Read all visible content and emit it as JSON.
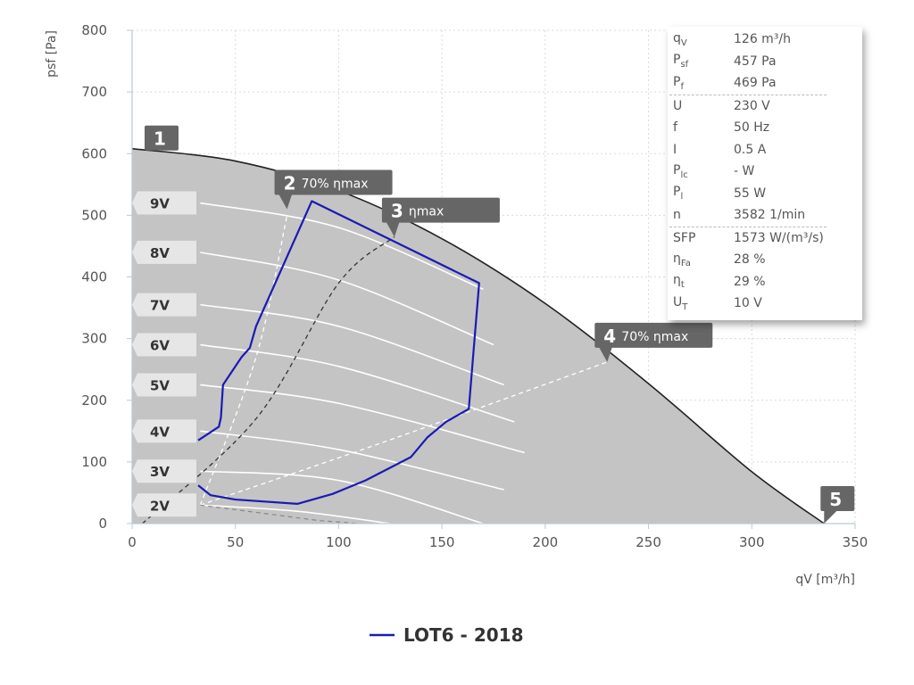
{
  "chart_data": {
    "type": "line",
    "xlabel": "qV [m³/h]",
    "ylabel": "psf [Pa]",
    "xlim": [
      0,
      350
    ],
    "ylim": [
      0,
      800
    ],
    "x_ticks": [
      0,
      50,
      100,
      150,
      200,
      250,
      300,
      350
    ],
    "y_ticks": [
      0,
      100,
      200,
      300,
      400,
      500,
      600,
      700,
      800
    ],
    "grid": true,
    "legend_position": "bottom-center",
    "legend": [
      {
        "name": "LOT6 - 2018",
        "color": "#1a1ab4"
      }
    ],
    "max_curve": [
      [
        0,
        608
      ],
      [
        50,
        588
      ],
      [
        100,
        540
      ],
      [
        150,
        462
      ],
      [
        200,
        357
      ],
      [
        250,
        227
      ],
      [
        300,
        84
      ],
      [
        335,
        0
      ]
    ],
    "lot6_polygon": [
      [
        32,
        62
      ],
      [
        38,
        46
      ],
      [
        50,
        39
      ],
      [
        80,
        32
      ],
      [
        97,
        48
      ],
      [
        113,
        70
      ],
      [
        135,
        108
      ],
      [
        143,
        140
      ],
      [
        152,
        165
      ],
      [
        163,
        186
      ],
      [
        168,
        390
      ],
      [
        87,
        523
      ],
      [
        60,
        320
      ],
      [
        57,
        285
      ],
      [
        53,
        270
      ],
      [
        44,
        225
      ],
      [
        43,
        172
      ],
      [
        42,
        157
      ],
      [
        32,
        135
      ]
    ],
    "eta_lines": [
      {
        "label": "2",
        "points": [
          [
            33,
            30
          ],
          [
            60,
            270
          ],
          [
            75,
            500
          ]
        ]
      },
      {
        "label": "3",
        "points": [
          [
            5,
            0
          ],
          [
            60,
            170
          ],
          [
            100,
            390
          ],
          [
            127,
            465
          ]
        ]
      },
      {
        "label": "4",
        "points": [
          [
            33,
            30
          ],
          [
            120,
            130
          ],
          [
            230,
            262
          ]
        ]
      }
    ],
    "voltage_curves": [
      {
        "label": "9V",
        "points": [
          [
            33,
            520
          ],
          [
            100,
            480
          ],
          [
            170,
            380
          ]
        ]
      },
      {
        "label": "8V",
        "points": [
          [
            33,
            440
          ],
          [
            100,
            395
          ],
          [
            175,
            290
          ]
        ]
      },
      {
        "label": "7V",
        "points": [
          [
            33,
            355
          ],
          [
            100,
            320
          ],
          [
            180,
            225
          ]
        ]
      },
      {
        "label": "6V",
        "points": [
          [
            33,
            290
          ],
          [
            100,
            255
          ],
          [
            185,
            165
          ]
        ]
      },
      {
        "label": "5V",
        "points": [
          [
            33,
            225
          ],
          [
            100,
            195
          ],
          [
            190,
            115
          ]
        ]
      },
      {
        "label": "4V",
        "points": [
          [
            33,
            150
          ],
          [
            100,
            120
          ],
          [
            180,
            55
          ]
        ]
      },
      {
        "label": "3V",
        "points": [
          [
            33,
            85
          ],
          [
            100,
            70
          ],
          [
            170,
            0
          ]
        ]
      },
      {
        "label": "2V",
        "points": [
          [
            33,
            30
          ],
          [
            80,
            20
          ],
          [
            125,
            0
          ]
        ]
      }
    ],
    "markers": [
      {
        "num": "1",
        "sub": "",
        "x": 0,
        "y": 608
      },
      {
        "num": "2",
        "sub": "70% ηmax",
        "x": 75,
        "y": 510
      },
      {
        "num": "3",
        "sub": "ηmax",
        "x": 127,
        "y": 465
      },
      {
        "num": "4",
        "sub": "70% ηmax",
        "x": 230,
        "y": 262
      },
      {
        "num": "5",
        "sub": "",
        "x": 335,
        "y": 0
      }
    ]
  },
  "info_panel": {
    "group1": [
      {
        "sym": "qV",
        "val": "126 m³/h"
      },
      {
        "sym": "Psf",
        "val": "457 Pa"
      },
      {
        "sym": "Pf",
        "val": "469 Pa"
      }
    ],
    "group2": [
      {
        "sym": "U",
        "val": "230 V"
      },
      {
        "sym": "f",
        "val": "50 Hz"
      },
      {
        "sym": "I",
        "val": "0.5 A"
      },
      {
        "sym": "Plc",
        "val": "- W"
      },
      {
        "sym": "Pl",
        "val": "55 W"
      },
      {
        "sym": "n",
        "val": "3582 1/min"
      }
    ],
    "group3": [
      {
        "sym": "SFP",
        "val": "1573 W/(m³/s)"
      },
      {
        "sym": "ηFa",
        "val": "28 %"
      },
      {
        "sym": "ηt",
        "val": "29 %"
      },
      {
        "sym": "UT",
        "val": "10 V"
      }
    ]
  }
}
